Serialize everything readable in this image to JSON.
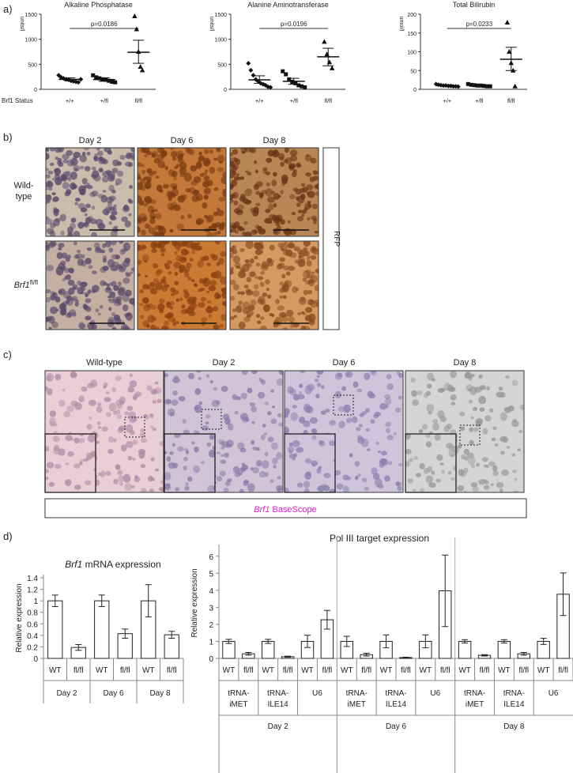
{
  "panel_labels": {
    "a": "a)",
    "b": "b)",
    "c": "c)",
    "d": "d)"
  },
  "panel_a": {
    "row_label": "Brf1 Status",
    "charts": [
      {
        "title": "Alkaline Phosphatase",
        "ylabel": "units/l",
        "pvalue": "p=0.0186",
        "yticks": [
          "0",
          "500",
          "1000",
          "1500"
        ],
        "ylim": [
          0,
          1500
        ],
        "categories": [
          "+/+",
          "+/fl",
          "fl/fl"
        ],
        "points": [
          [
            280,
            240,
            220,
            200,
            190,
            170,
            160,
            150,
            140,
            200
          ],
          [
            280,
            240,
            220,
            200,
            190,
            170,
            150,
            140
          ],
          [
            1460,
            1200,
            750,
            450,
            380
          ]
        ],
        "means": [
          200,
          195,
          740
        ],
        "sem": [
          [
            170,
            230
          ],
          [
            160,
            230
          ],
          [
            520,
            980
          ]
        ]
      },
      {
        "title": "Alanine Aminotransferase",
        "ylabel": "units/l",
        "pvalue": "p=0.0196",
        "yticks": [
          "0",
          "500",
          "1000",
          "1500"
        ],
        "ylim": [
          0,
          1500
        ],
        "categories": [
          "+/+",
          "+/fl",
          "fl/fl"
        ],
        "points": [
          [
            520,
            380,
            280,
            200,
            160,
            120,
            100,
            80,
            50,
            40
          ],
          [
            360,
            300,
            200,
            150,
            120,
            80,
            60,
            40
          ],
          [
            950,
            700,
            540,
            420
          ]
        ],
        "means": [
          190,
          160,
          650
        ],
        "sem": [
          [
            120,
            270
          ],
          [
            100,
            220
          ],
          [
            470,
            820
          ]
        ]
      },
      {
        "title": "Total Bilirubin",
        "ylabel": "umol/l",
        "pvalue": "p=0.0233",
        "yticks": [
          "0",
          "50",
          "100",
          "150",
          "200"
        ],
        "ylim": [
          0,
          200
        ],
        "categories": [
          "+/+",
          "+/fl",
          "fl/fl"
        ],
        "points": [
          [
            14,
            12,
            11,
            10,
            10,
            9,
            9,
            8,
            8,
            7
          ],
          [
            14,
            12,
            11,
            10,
            10,
            9,
            8,
            8
          ],
          [
            178,
            100,
            70,
            50,
            8
          ]
        ],
        "means": [
          10,
          11,
          80
        ],
        "sem": [
          [
            8,
            12
          ],
          [
            9,
            13
          ],
          [
            50,
            112
          ]
        ]
      }
    ]
  },
  "panel_b": {
    "columns": [
      "Day 2",
      "Day 6",
      "Day 8"
    ],
    "rows": [
      {
        "label": "Wild-type",
        "label_line1": "Wild-",
        "label_line2": "type"
      },
      {
        "label_gene": "Brf1",
        "label_sup": "fl/fl"
      }
    ],
    "side_label": "RFP",
    "colors": {
      "day2_bg": "#c9bcad",
      "day6_bg": "#c4793a",
      "day8_bg": "#b98756",
      "brf_day2_bg": "#c3b0a2",
      "brf_day6_bg": "#cb7b34",
      "brf_day8_bg": "#d39a62",
      "label": "#a0522d"
    }
  },
  "panel_c": {
    "columns": [
      "Wild-type",
      "Day 2",
      "Day 6",
      "Day 8"
    ],
    "banner_gene": "Brf1",
    "banner_rest": " BaseScope",
    "colors": {
      "wt_bg": "#e8cfd6",
      "d2_bg": "#cfc5d6",
      "d6_bg": "#cdc6db",
      "d8_bg": "#d6d5d3",
      "banner": "#e619d2"
    }
  },
  "chart_data": [
    {
      "type": "bar",
      "title_gene": "Brf1",
      "title_rest": " mRNA expression",
      "ylabel": "Relative expression",
      "ylim": [
        0,
        1.4
      ],
      "yticks": [
        "0",
        "0.2",
        "0.4",
        "0.6",
        "0.8",
        "1",
        "1.2",
        "1.4"
      ],
      "categories": [
        "WT",
        "fl/fl",
        "WT",
        "fl/fl",
        "WT",
        "fl/fl"
      ],
      "groups": [
        "Day 2",
        "Day 6",
        "Day 8"
      ],
      "values": [
        1.0,
        0.19,
        1.0,
        0.43,
        1.0,
        0.41
      ],
      "errors": [
        0.1,
        0.05,
        0.1,
        0.08,
        0.28,
        0.06
      ]
    },
    {
      "type": "bar",
      "title": "Pol III target expression",
      "ylabel": "Relative expression",
      "ylim": [
        0,
        6.5
      ],
      "yticks": [
        "0",
        "1",
        "2",
        "3",
        "4",
        "5",
        "6"
      ],
      "categories": [
        "WT",
        "fl/fl",
        "WT",
        "fl/fl",
        "WT",
        "fl/fl",
        "WT",
        "fl/fl",
        "WT",
        "fl/fl",
        "WT",
        "fl/fl",
        "WT",
        "fl/fl",
        "WT",
        "fl/fl",
        "WT",
        "fl/fl"
      ],
      "targets": [
        {
          "line1": "tRNA-",
          "line2": "iMET"
        },
        {
          "line1": "tRNA-",
          "line2": "ILE14"
        },
        {
          "line1": "U6",
          "line2": ""
        },
        {
          "line1": "tRNA-",
          "line2": "iMET"
        },
        {
          "line1": "tRNA-",
          "line2": "ILE14"
        },
        {
          "line1": "U6",
          "line2": ""
        },
        {
          "line1": "tRNA-",
          "line2": "iMET"
        },
        {
          "line1": "tRNA-",
          "line2": "ILE14"
        },
        {
          "line1": "U6",
          "line2": ""
        }
      ],
      "groups": [
        "Day 2",
        "Day 6",
        "Day 8"
      ],
      "values": [
        1.0,
        0.27,
        1.0,
        0.1,
        1.0,
        2.27,
        1.0,
        0.22,
        1.0,
        0.05,
        1.0,
        3.97,
        1.0,
        0.18,
        1.0,
        0.27,
        1.0,
        3.77
      ],
      "errors": [
        0.12,
        0.08,
        0.12,
        0.03,
        0.36,
        0.55,
        0.3,
        0.08,
        0.38,
        0.02,
        0.38,
        2.1,
        0.1,
        0.04,
        0.1,
        0.08,
        0.18,
        1.25
      ]
    }
  ]
}
